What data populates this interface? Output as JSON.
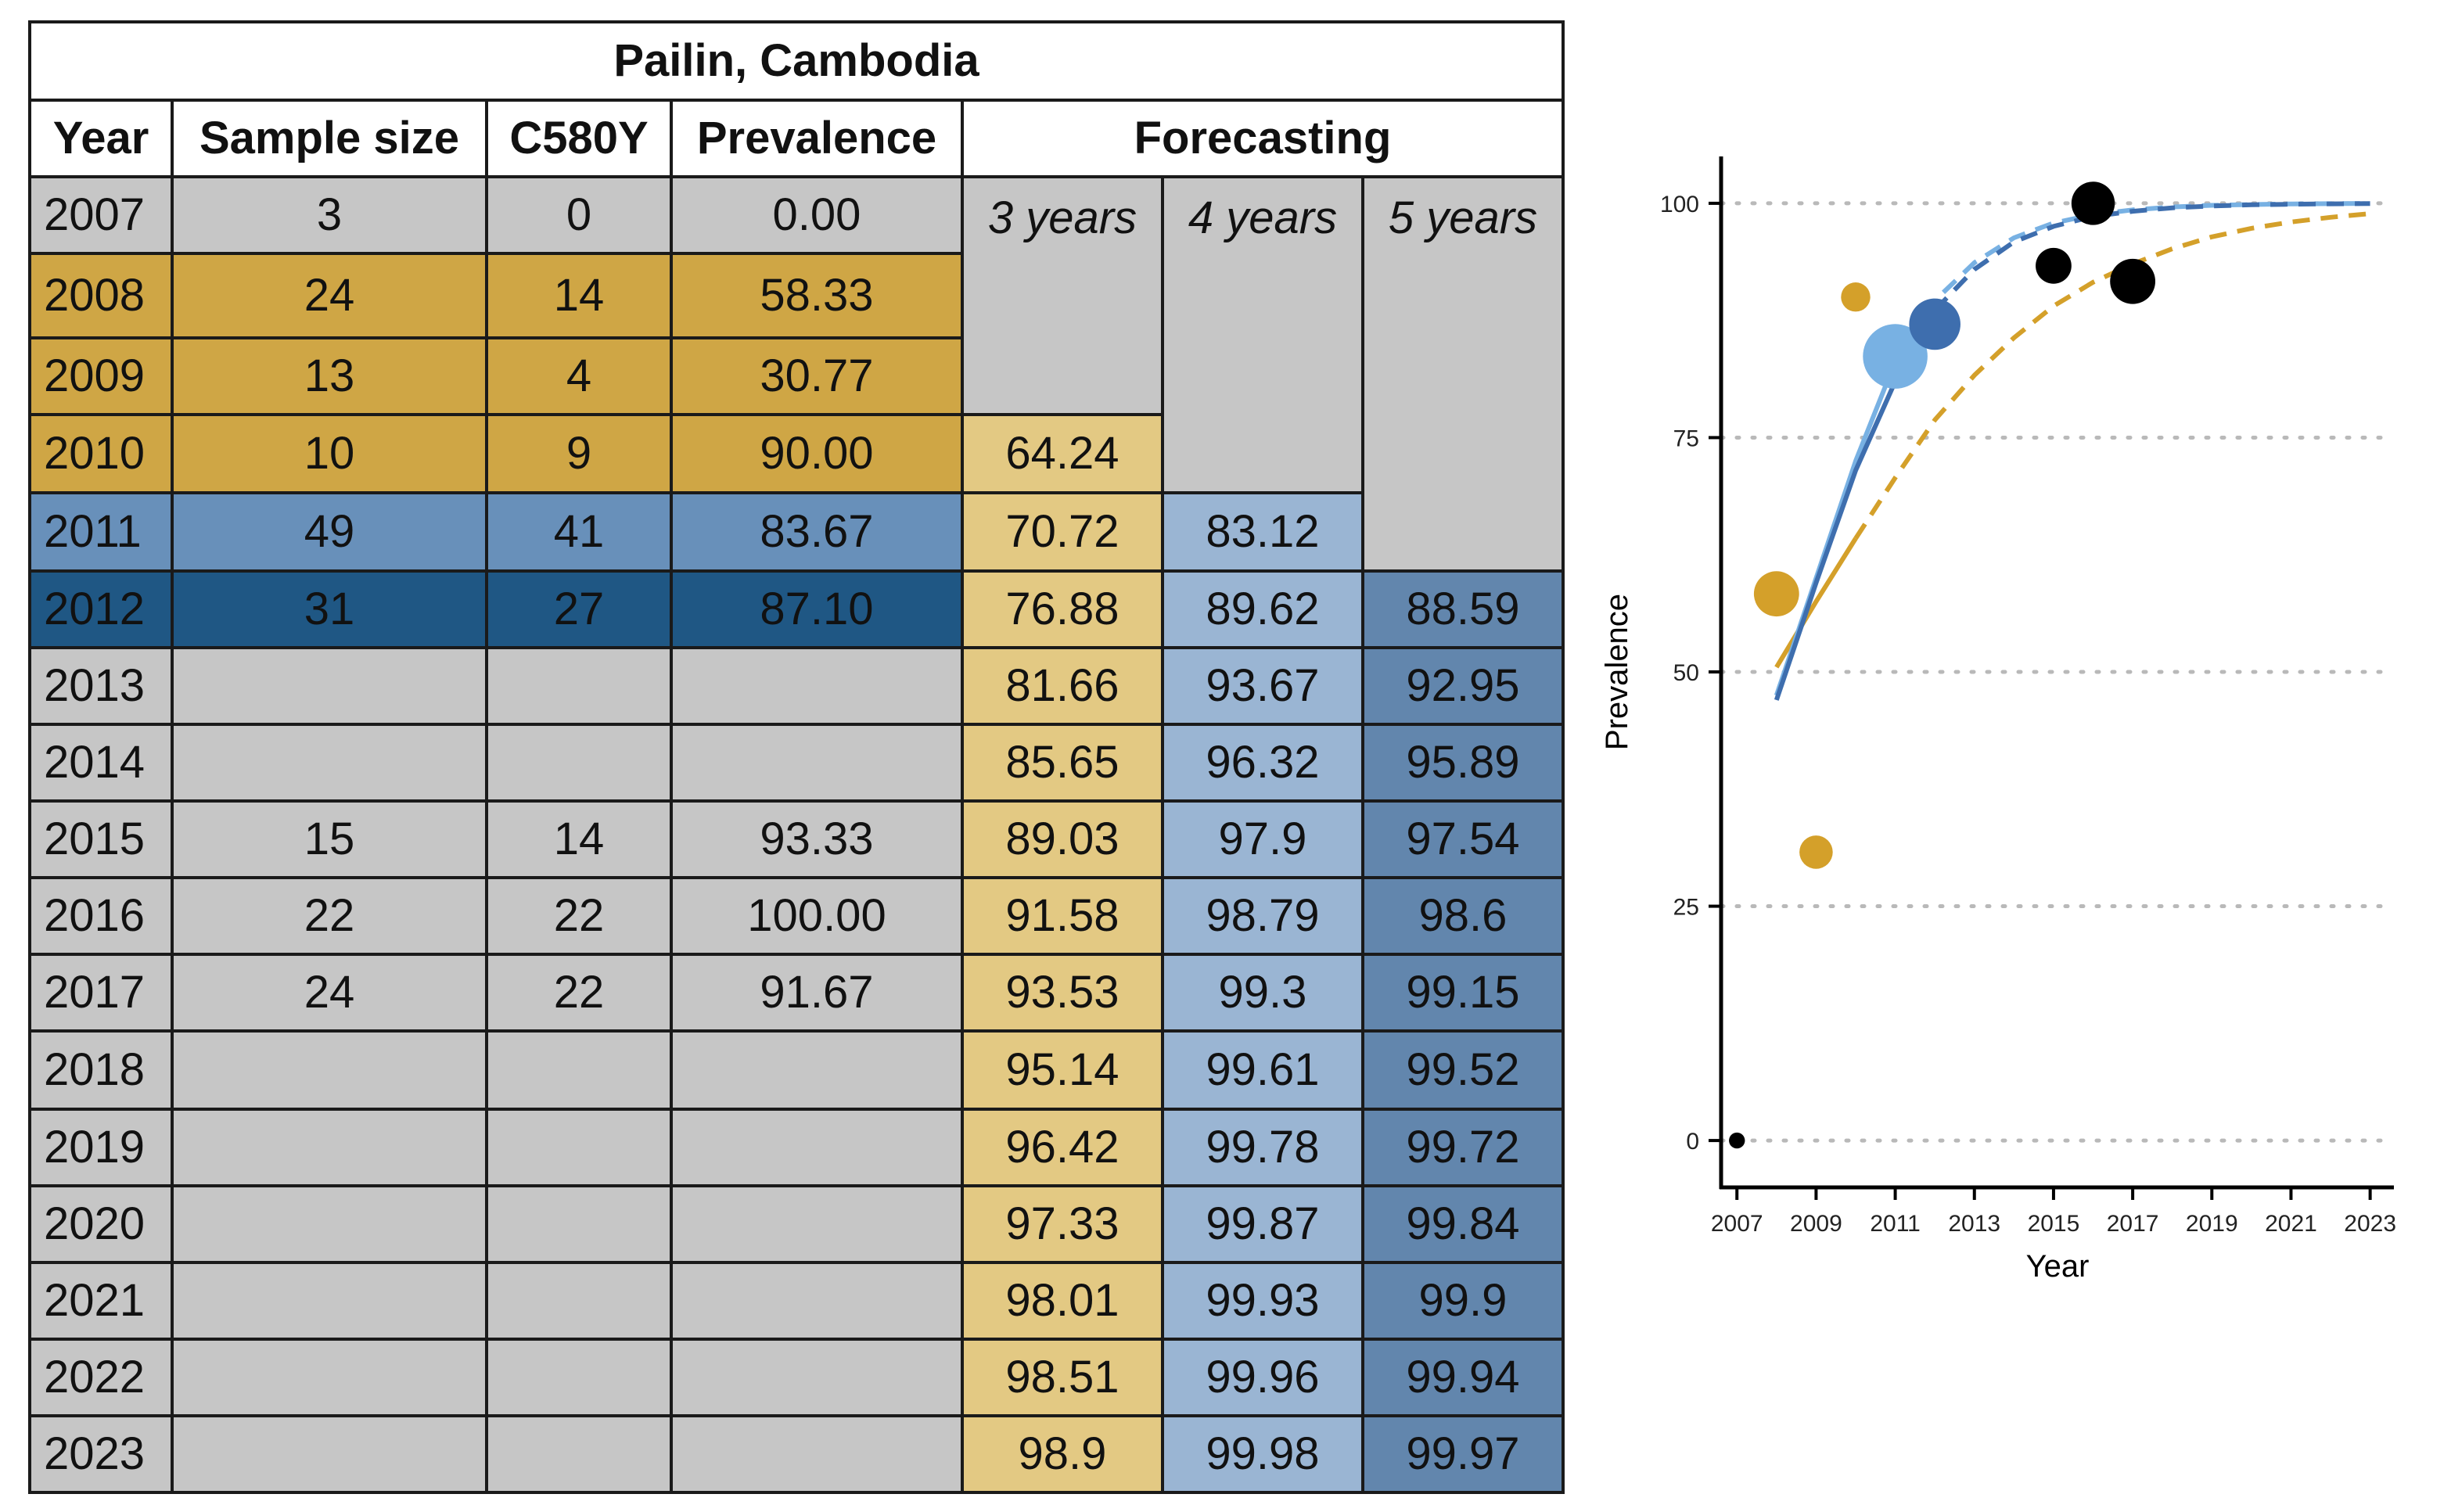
{
  "table": {
    "title": "Pailin, Cambodia",
    "headers": [
      "Year",
      "Sample size",
      "C580Y",
      "Prevalence",
      "Forecasting"
    ],
    "forecast_headers": [
      "3 years",
      "4 years",
      "5 years"
    ],
    "colors": {
      "gray": "#c6c6c6",
      "gold": "#cfa645",
      "light_blue": "#6890ba",
      "dark_blue": "#1f5784",
      "forecast_3": "#e3c983",
      "forecast_4": "#9ab5d3",
      "forecast_5": "#6286ad"
    },
    "rows": [
      {
        "year": "2007",
        "sample_size": "3",
        "c580y": "0",
        "prevalence": "0.00",
        "f3": null,
        "f4": null,
        "f5": null,
        "highlight": "gray"
      },
      {
        "year": "2008",
        "sample_size": "24",
        "c580y": "14",
        "prevalence": "58.33",
        "f3": null,
        "f4": null,
        "f5": null,
        "highlight": "gold"
      },
      {
        "year": "2009",
        "sample_size": "13",
        "c580y": "4",
        "prevalence": "30.77",
        "f3": null,
        "f4": null,
        "f5": null,
        "highlight": "gold"
      },
      {
        "year": "2010",
        "sample_size": "10",
        "c580y": "9",
        "prevalence": "90.00",
        "f3": "64.24",
        "f4": null,
        "f5": null,
        "highlight": "gold"
      },
      {
        "year": "2011",
        "sample_size": "49",
        "c580y": "41",
        "prevalence": "83.67",
        "f3": "70.72",
        "f4": "83.12",
        "f5": null,
        "highlight": "lblue"
      },
      {
        "year": "2012",
        "sample_size": "31",
        "c580y": "27",
        "prevalence": "87.10",
        "f3": "76.88",
        "f4": "89.62",
        "f5": "88.59",
        "highlight": "dblue"
      },
      {
        "year": "2013",
        "sample_size": "",
        "c580y": "",
        "prevalence": "",
        "f3": "81.66",
        "f4": "93.67",
        "f5": "92.95",
        "highlight": "gray"
      },
      {
        "year": "2014",
        "sample_size": "",
        "c580y": "",
        "prevalence": "",
        "f3": "85.65",
        "f4": "96.32",
        "f5": "95.89",
        "highlight": "gray"
      },
      {
        "year": "2015",
        "sample_size": "15",
        "c580y": "14",
        "prevalence": "93.33",
        "f3": "89.03",
        "f4": "97.9",
        "f5": "97.54",
        "highlight": "gray"
      },
      {
        "year": "2016",
        "sample_size": "22",
        "c580y": "22",
        "prevalence": "100.00",
        "f3": "91.58",
        "f4": "98.79",
        "f5": "98.6",
        "highlight": "gray"
      },
      {
        "year": "2017",
        "sample_size": "24",
        "c580y": "22",
        "prevalence": "91.67",
        "f3": "93.53",
        "f4": "99.3",
        "f5": "99.15",
        "highlight": "gray"
      },
      {
        "year": "2018",
        "sample_size": "",
        "c580y": "",
        "prevalence": "",
        "f3": "95.14",
        "f4": "99.61",
        "f5": "99.52",
        "highlight": "gray"
      },
      {
        "year": "2019",
        "sample_size": "",
        "c580y": "",
        "prevalence": "",
        "f3": "96.42",
        "f4": "99.78",
        "f5": "99.72",
        "highlight": "gray"
      },
      {
        "year": "2020",
        "sample_size": "",
        "c580y": "",
        "prevalence": "",
        "f3": "97.33",
        "f4": "99.87",
        "f5": "99.84",
        "highlight": "gray"
      },
      {
        "year": "2021",
        "sample_size": "",
        "c580y": "",
        "prevalence": "",
        "f3": "98.01",
        "f4": "99.93",
        "f5": "99.9",
        "highlight": "gray"
      },
      {
        "year": "2022",
        "sample_size": "",
        "c580y": "",
        "prevalence": "",
        "f3": "98.51",
        "f4": "99.96",
        "f5": "99.94",
        "highlight": "gray"
      },
      {
        "year": "2023",
        "sample_size": "",
        "c580y": "",
        "prevalence": "",
        "f3": "98.9",
        "f4": "99.98",
        "f5": "99.97",
        "highlight": "gray"
      }
    ]
  },
  "chart_data": {
    "type": "scatter",
    "title": "",
    "xlabel": "Year",
    "ylabel": "Prevalence",
    "xlim": [
      2006.6,
      2023.6
    ],
    "ylim": [
      -5,
      105
    ],
    "x_ticks": [
      2007,
      2009,
      2011,
      2013,
      2015,
      2017,
      2019,
      2021,
      2023
    ],
    "y_ticks": [
      0,
      25,
      50,
      75,
      100
    ],
    "grid": "horizontal dotted",
    "legend": "none",
    "points": [
      {
        "x": 2007,
        "y": 0,
        "size": 3,
        "color": "#000000"
      },
      {
        "x": 2008,
        "y": 58.33,
        "size": 24,
        "color": "#d4a02a"
      },
      {
        "x": 2009,
        "y": 30.77,
        "size": 13,
        "color": "#d4a02a"
      },
      {
        "x": 2010,
        "y": 90,
        "size": 10,
        "color": "#d4a02a"
      },
      {
        "x": 2011,
        "y": 83.67,
        "size": 49,
        "color": "#78b1e3"
      },
      {
        "x": 2012,
        "y": 87.1,
        "size": 31,
        "color": "#3e6eae"
      },
      {
        "x": 2015,
        "y": 93.33,
        "size": 15,
        "color": "#000000"
      },
      {
        "x": 2016,
        "y": 100,
        "size": 22,
        "color": "#000000"
      },
      {
        "x": 2017,
        "y": 91.67,
        "size": 24,
        "color": "#000000"
      }
    ],
    "series": [
      {
        "color": "#d4a02a",
        "fitted": {
          "x": [
            2008,
            2009,
            2010
          ],
          "y": [
            50.5,
            57.5,
            64.24
          ]
        },
        "forecast": {
          "x": [
            2010,
            2011,
            2012,
            2013,
            2014,
            2015,
            2016,
            2017,
            2018,
            2019,
            2020,
            2021,
            2022,
            2023
          ],
          "y": [
            64.24,
            70.72,
            76.88,
            81.66,
            85.65,
            89.03,
            91.58,
            93.53,
            95.14,
            96.42,
            97.33,
            98.01,
            98.51,
            98.9
          ]
        }
      },
      {
        "color": "#78b1e3",
        "fitted": {
          "x": [
            2008,
            2009,
            2010,
            2011
          ],
          "y": [
            47.5,
            60,
            72.5,
            83.12
          ]
        },
        "forecast": {
          "x": [
            2011,
            2012,
            2013,
            2014,
            2015,
            2016,
            2017,
            2018,
            2019,
            2020,
            2021,
            2022,
            2023
          ],
          "y": [
            83.12,
            89.62,
            93.67,
            96.32,
            97.9,
            98.79,
            99.3,
            99.61,
            99.78,
            99.87,
            99.93,
            99.96,
            99.98
          ]
        }
      },
      {
        "color": "#3e6eae",
        "fitted": {
          "x": [
            2008,
            2009,
            2010,
            2011,
            2012
          ],
          "y": [
            47,
            59.5,
            71.5,
            81,
            88.59
          ]
        },
        "forecast": {
          "x": [
            2012,
            2013,
            2014,
            2015,
            2016,
            2017,
            2018,
            2019,
            2020,
            2021,
            2022,
            2023
          ],
          "y": [
            88.59,
            92.95,
            95.89,
            97.54,
            98.6,
            99.15,
            99.52,
            99.72,
            99.84,
            99.9,
            99.94,
            99.97
          ]
        }
      }
    ]
  }
}
